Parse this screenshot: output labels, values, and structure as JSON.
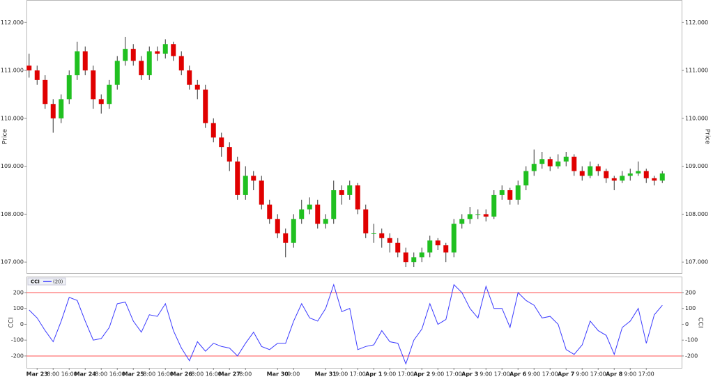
{
  "chart_data": [
    {
      "type": "candlestick",
      "y_label": "Price",
      "categories": [
        null,
        "Mar 23",
        null,
        "8:00",
        null,
        "16:00",
        null,
        "Mar 24",
        null,
        "8:00",
        null,
        "16:00",
        null,
        "Mar 25",
        null,
        "8:00",
        null,
        "16:00",
        null,
        "Mar 26",
        null,
        "8:00",
        null,
        "16:00",
        null,
        "Mar 27",
        null,
        "8:00",
        null,
        null,
        null,
        "Mar 30",
        null,
        "9:00",
        null,
        null,
        null,
        "Mar 31",
        null,
        "9:00",
        null,
        "17:00",
        null,
        "Apr 1",
        null,
        "9:00",
        null,
        "17:00",
        null,
        "Apr 2",
        null,
        "9:00",
        null,
        "17:00",
        null,
        "Apr 3",
        null,
        "9:00",
        null,
        "17:00",
        null,
        "Apr 6",
        null,
        "9:00",
        null,
        "17:00",
        null,
        "Apr 7",
        null,
        "9:00",
        null,
        "17:00",
        null,
        "Apr 8",
        null,
        "9:00",
        null,
        "17:00",
        null,
        null
      ],
      "open": [
        111.1,
        111.0,
        110.8,
        110.3,
        110.0,
        110.4,
        110.9,
        111.4,
        111.0,
        110.4,
        110.3,
        110.7,
        111.2,
        111.45,
        111.2,
        110.9,
        111.4,
        111.35,
        111.55,
        111.3,
        111.0,
        110.7,
        110.6,
        109.9,
        109.6,
        109.4,
        109.1,
        108.4,
        108.8,
        108.7,
        108.2,
        107.9,
        107.6,
        107.4,
        107.9,
        108.1,
        108.2,
        107.8,
        107.9,
        108.5,
        108.4,
        108.6,
        108.1,
        107.6,
        107.6,
        107.5,
        107.4,
        107.2,
        107.0,
        107.1,
        107.2,
        107.45,
        107.35,
        107.2,
        107.8,
        107.9,
        108.0,
        108.0,
        107.95,
        108.4,
        108.5,
        108.3,
        108.6,
        108.9,
        109.05,
        109.15,
        109.0,
        109.1,
        109.2,
        108.9,
        108.8,
        109.0,
        108.9,
        108.75,
        108.7,
        108.8,
        108.85,
        108.9,
        108.75,
        108.7
      ],
      "high": [
        111.35,
        111.1,
        110.9,
        110.4,
        110.5,
        111.0,
        111.6,
        111.5,
        111.1,
        110.5,
        110.8,
        111.3,
        111.7,
        111.55,
        111.3,
        111.5,
        111.5,
        111.65,
        111.6,
        111.4,
        111.1,
        110.8,
        110.7,
        110.0,
        109.7,
        109.5,
        109.2,
        109.0,
        108.9,
        108.8,
        108.3,
        108.0,
        107.7,
        108.0,
        108.3,
        108.35,
        108.3,
        108.0,
        108.7,
        108.6,
        108.7,
        108.65,
        108.2,
        107.8,
        107.7,
        107.6,
        107.5,
        107.3,
        107.2,
        107.3,
        107.55,
        107.5,
        107.4,
        107.9,
        108.0,
        108.15,
        108.1,
        108.1,
        108.5,
        108.6,
        108.55,
        108.7,
        109.0,
        109.35,
        109.3,
        109.2,
        109.25,
        109.3,
        109.25,
        109.0,
        109.1,
        109.05,
        108.95,
        108.8,
        108.9,
        108.95,
        109.1,
        108.95,
        108.8,
        108.9
      ],
      "low": [
        110.85,
        110.7,
        110.2,
        109.7,
        109.9,
        110.3,
        110.8,
        110.9,
        110.2,
        110.1,
        110.2,
        110.6,
        111.1,
        111.1,
        110.8,
        110.8,
        111.2,
        111.25,
        111.2,
        110.9,
        110.6,
        110.4,
        109.8,
        109.5,
        109.2,
        108.9,
        108.3,
        108.3,
        108.5,
        108.1,
        107.8,
        107.5,
        107.1,
        107.3,
        107.8,
        108.0,
        107.7,
        107.7,
        107.8,
        108.2,
        108.3,
        108.0,
        107.5,
        107.4,
        107.3,
        107.2,
        107.1,
        106.9,
        106.9,
        107.0,
        107.1,
        107.25,
        107.0,
        107.1,
        107.7,
        107.8,
        107.9,
        107.85,
        107.9,
        108.3,
        108.2,
        108.2,
        108.5,
        108.8,
        108.95,
        108.9,
        108.95,
        109.0,
        108.8,
        108.7,
        108.75,
        108.8,
        108.65,
        108.5,
        108.65,
        108.7,
        108.8,
        108.65,
        108.6,
        108.65
      ],
      "close": [
        111.0,
        110.8,
        110.3,
        110.0,
        110.4,
        110.9,
        111.4,
        111.0,
        110.4,
        110.3,
        110.7,
        111.2,
        111.45,
        111.2,
        110.9,
        111.4,
        111.35,
        111.55,
        111.3,
        111.0,
        110.7,
        110.6,
        109.9,
        109.6,
        109.4,
        109.1,
        108.4,
        108.8,
        108.7,
        108.2,
        107.9,
        107.6,
        107.4,
        107.9,
        108.1,
        108.2,
        107.8,
        107.9,
        108.5,
        108.4,
        108.6,
        108.1,
        107.6,
        107.6,
        107.5,
        107.4,
        107.2,
        107.0,
        107.1,
        107.2,
        107.45,
        107.35,
        107.2,
        107.8,
        107.9,
        108.0,
        108.0,
        107.95,
        108.4,
        108.5,
        108.3,
        108.6,
        108.9,
        109.05,
        109.15,
        109.0,
        109.1,
        109.2,
        108.9,
        108.8,
        109.0,
        108.9,
        108.75,
        108.7,
        108.8,
        108.85,
        108.9,
        108.75,
        108.7,
        108.85
      ],
      "up_color": "#20c020",
      "down_color": "#e00000",
      "ylim": [
        106.77,
        112.47
      ],
      "yticks": [
        {
          "value": 107,
          "label": "107.000"
        },
        {
          "value": 108,
          "label": "108.000"
        },
        {
          "value": 109,
          "label": "109.000"
        },
        {
          "value": 110,
          "label": "110.000"
        },
        {
          "value": 111,
          "label": "111.000"
        },
        {
          "value": 112,
          "label": "112.000"
        }
      ]
    },
    {
      "type": "line",
      "title": "CCI",
      "y_label": "CCI",
      "series": [
        {
          "name": "(20)",
          "color": "#3a3aff",
          "values": [
            90,
            40,
            -40,
            -110,
            20,
            170,
            150,
            20,
            -100,
            -90,
            -20,
            130,
            140,
            20,
            -50,
            60,
            50,
            130,
            -40,
            -150,
            -230,
            -110,
            -170,
            -120,
            -140,
            -150,
            -200,
            -120,
            -50,
            -140,
            -160,
            -120,
            -120,
            20,
            130,
            40,
            20,
            100,
            250,
            80,
            100,
            -160,
            -140,
            -130,
            -40,
            -110,
            -120,
            -250,
            -100,
            -30,
            130,
            0,
            30,
            250,
            200,
            100,
            40,
            240,
            100,
            100,
            -20,
            200,
            150,
            120,
            40,
            50,
            0,
            -160,
            -190,
            -130,
            20,
            -40,
            -70,
            -190,
            -20,
            20,
            100,
            -120,
            60,
            120
          ]
        }
      ],
      "levels": [
        200,
        -200
      ],
      "level_color": "#ff5050",
      "ylim": [
        -275,
        301
      ],
      "yticks": [
        -200,
        -100,
        0,
        100,
        200
      ]
    }
  ]
}
